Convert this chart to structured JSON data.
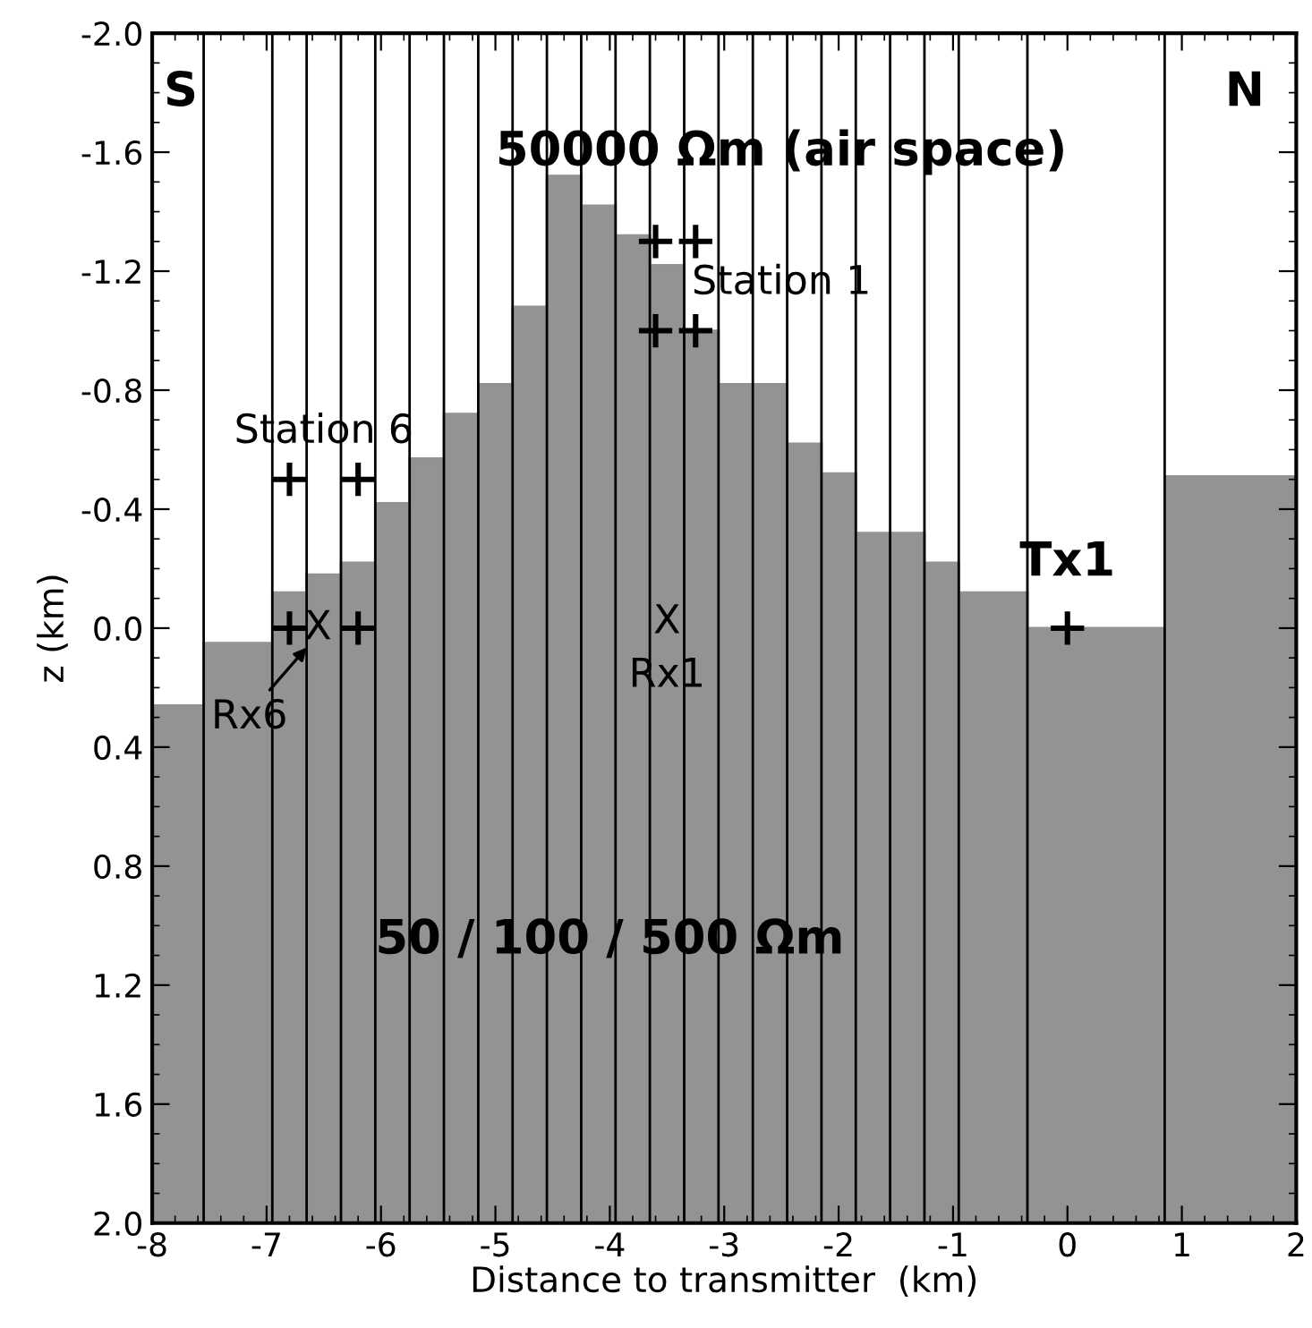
{
  "chart_data": {
    "type": "area",
    "xlabel": "Distance to transmitter  (km)",
    "ylabel": "z (km)",
    "xlim": [
      -8,
      2
    ],
    "xticks": [
      -8,
      -7,
      -6,
      -5,
      -4,
      -3,
      -2,
      -1,
      0,
      1,
      2
    ],
    "ylim": [
      2.0,
      -2.0
    ],
    "yticks": [
      {
        "value": -2.0,
        "label": "-2.0"
      },
      -1.6,
      -1.2,
      -0.8,
      -0.4,
      {
        "value": 0.0,
        "label": "0.0"
      },
      0.4,
      0.8,
      1.2,
      1.6,
      {
        "value": 2.0,
        "label": "2.0"
      }
    ],
    "grid": false,
    "series": [
      {
        "color": "#939393",
        "x": [
          -8,
          -8,
          -7.55,
          -7.55,
          -6.95,
          -6.95,
          -6.65,
          -6.65,
          -6.35,
          -6.35,
          -6.05,
          -6.05,
          -5.75,
          -5.75,
          -5.45,
          -5.45,
          -5.15,
          -5.15,
          -4.85,
          -4.85,
          -4.55,
          -4.55,
          -4.25,
          -4.25,
          -3.95,
          -3.95,
          -3.65,
          -3.65,
          -3.35,
          -3.35,
          -3.05,
          -3.05,
          -2.75,
          -2.75,
          -2.45,
          -2.45,
          -2.15,
          -2.15,
          -1.85,
          -1.85,
          -1.55,
          -1.55,
          -1.25,
          -1.25,
          -0.95,
          -0.95,
          -0.35,
          -0.35,
          0.85,
          0.85,
          2,
          2
        ],
        "values": [
          2.0,
          0.26,
          0.26,
          0.05,
          0.05,
          -0.12,
          -0.12,
          -0.18,
          -0.18,
          -0.22,
          -0.22,
          -0.42,
          -0.42,
          -0.57,
          -0.57,
          -0.72,
          -0.72,
          -0.82,
          -0.82,
          -1.08,
          -1.08,
          -1.52,
          -1.52,
          -1.42,
          -1.42,
          -1.32,
          -1.32,
          -1.22,
          -1.22,
          -1.0,
          -1.0,
          -0.82,
          -0.82,
          -0.82,
          -0.82,
          -0.62,
          -0.62,
          -0.52,
          -0.52,
          -0.32,
          -0.32,
          -0.32,
          -0.32,
          -0.22,
          -0.22,
          -0.12,
          -0.12,
          0.0,
          0.0,
          -0.51,
          -0.51,
          2.0
        ]
      },
      {
        "type": "scatter",
        "color": "#000000",
        "marker": "cross",
        "x": [
          -6.8,
          -6.2,
          -6.8,
          -6.2,
          -3.6,
          -3.25,
          -3.6,
          -3.25,
          0.0
        ],
        "values": [
          -0.5,
          -0.5,
          0.0,
          0.0,
          -1.3,
          -1.3,
          -1.0,
          -1.0,
          0.0
        ]
      }
    ],
    "ref_lines": [
      {
        "axis": "x",
        "value": -7.55,
        "color": "#000000"
      },
      {
        "axis": "x",
        "value": -6.95,
        "color": "#000000"
      },
      {
        "axis": "x",
        "value": -6.65,
        "color": "#000000"
      },
      {
        "axis": "x",
        "value": -6.35,
        "color": "#000000"
      },
      {
        "axis": "x",
        "value": -6.05,
        "color": "#000000"
      },
      {
        "axis": "x",
        "value": -5.75,
        "color": "#000000"
      },
      {
        "axis": "x",
        "value": -5.45,
        "color": "#000000"
      },
      {
        "axis": "x",
        "value": -5.15,
        "color": "#000000"
      },
      {
        "axis": "x",
        "value": -4.85,
        "color": "#000000"
      },
      {
        "axis": "x",
        "value": -4.55,
        "color": "#000000"
      },
      {
        "axis": "x",
        "value": -4.25,
        "color": "#000000"
      },
      {
        "axis": "x",
        "value": -3.95,
        "color": "#000000"
      },
      {
        "axis": "x",
        "value": -3.65,
        "color": "#000000"
      },
      {
        "axis": "x",
        "value": -3.35,
        "color": "#000000"
      },
      {
        "axis": "x",
        "value": -3.05,
        "color": "#000000"
      },
      {
        "axis": "x",
        "value": -2.75,
        "color": "#000000"
      },
      {
        "axis": "x",
        "value": -2.45,
        "color": "#000000"
      },
      {
        "axis": "x",
        "value": -2.15,
        "color": "#000000"
      },
      {
        "axis": "x",
        "value": -1.85,
        "color": "#000000"
      },
      {
        "axis": "x",
        "value": -1.55,
        "color": "#000000"
      },
      {
        "axis": "x",
        "value": -1.25,
        "color": "#000000"
      },
      {
        "axis": "x",
        "value": -0.95,
        "color": "#000000"
      },
      {
        "axis": "x",
        "value": -0.35,
        "color": "#000000"
      },
      {
        "axis": "x",
        "value": 0.85,
        "color": "#000000"
      }
    ],
    "annotations": [
      "S",
      "N",
      "50000 Ωm (air space)",
      "Station 1",
      "Station 6",
      "X",
      "Rx6",
      "X",
      "Rx1",
      "Tx1",
      "50 / 100 / 500 Ωm"
    ]
  }
}
